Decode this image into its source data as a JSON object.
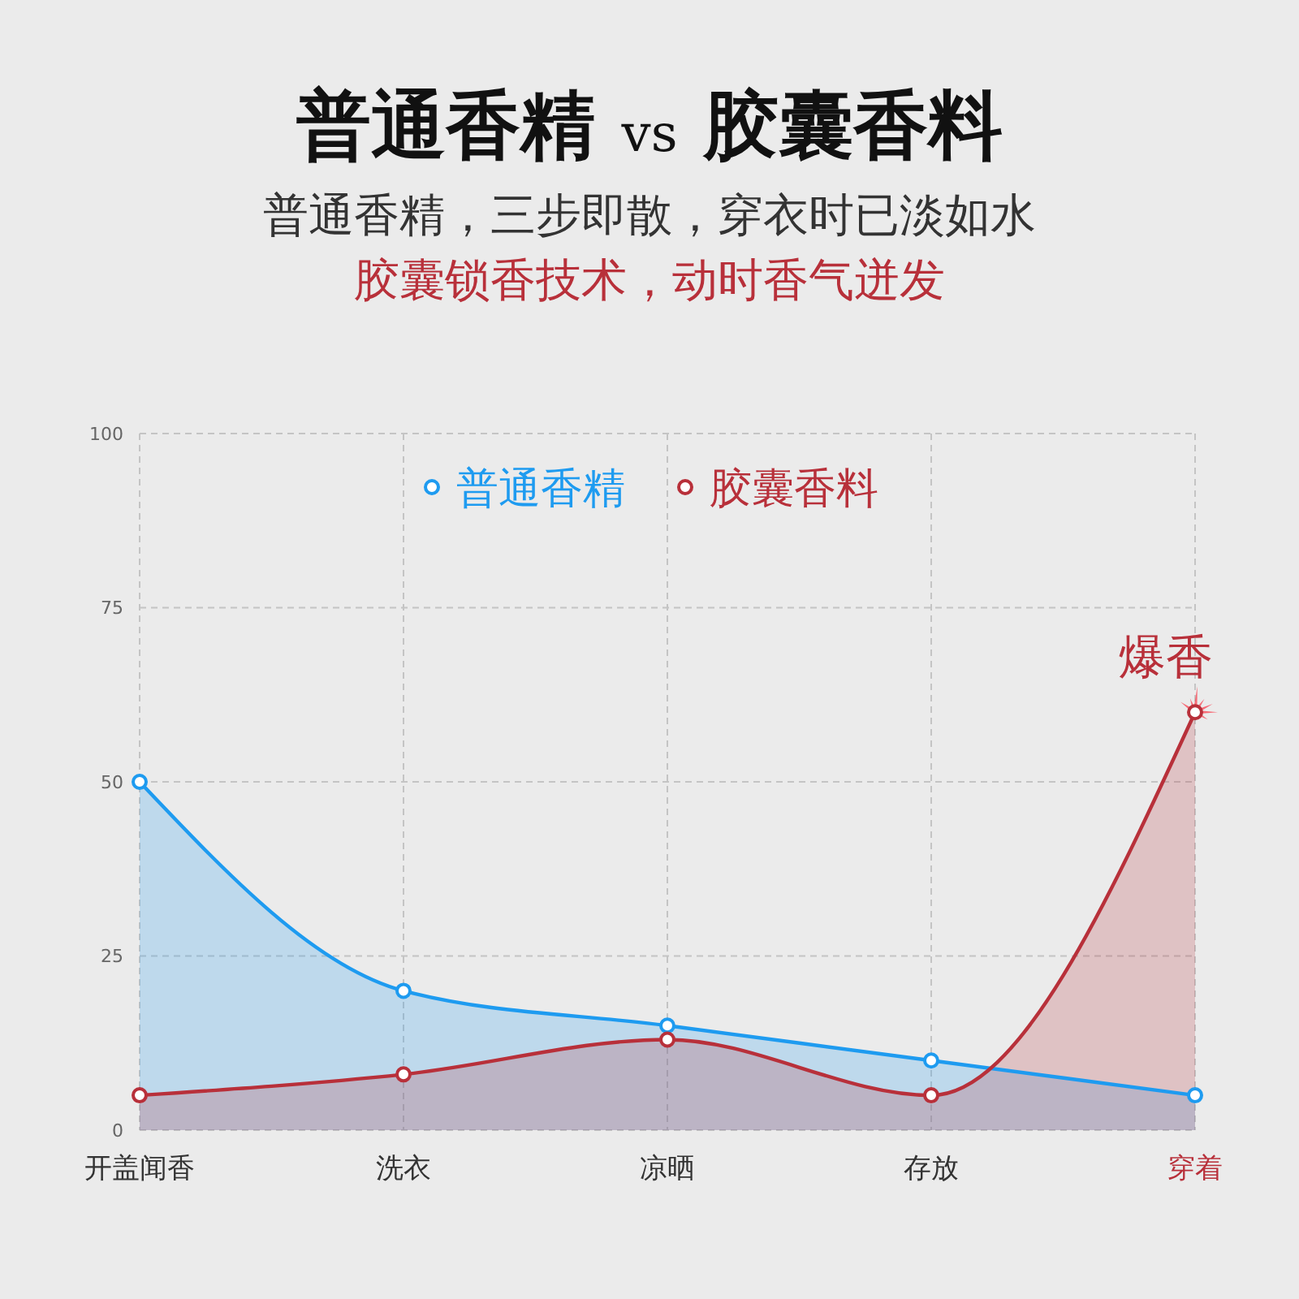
{
  "chart_data": {
    "type": "area",
    "title": "普通香精 vs 胶囊香料",
    "subtitle": "普通香精，三步即散，穿衣时已淡如水",
    "annotations": [
      "胶囊锁香技术，动时香气迸发",
      {
        "text": "爆香",
        "x": "穿着",
        "y": 60
      }
    ],
    "categories": [
      "开盖闻香",
      "洗衣",
      "凉晒",
      "存放",
      "穿着"
    ],
    "series": [
      {
        "name": "普通香精",
        "color": "#1e9bf0",
        "values": [
          50,
          20,
          15,
          10,
          5
        ]
      },
      {
        "name": "胶囊香料",
        "color": "#b8303a",
        "values": [
          5,
          8,
          13,
          5,
          60
        ]
      }
    ],
    "ylim": [
      0,
      100
    ],
    "yticks": [
      0,
      25,
      50,
      75,
      100
    ],
    "grid": true,
    "legend": "top",
    "marker": "circle",
    "line_style": "solid"
  }
}
